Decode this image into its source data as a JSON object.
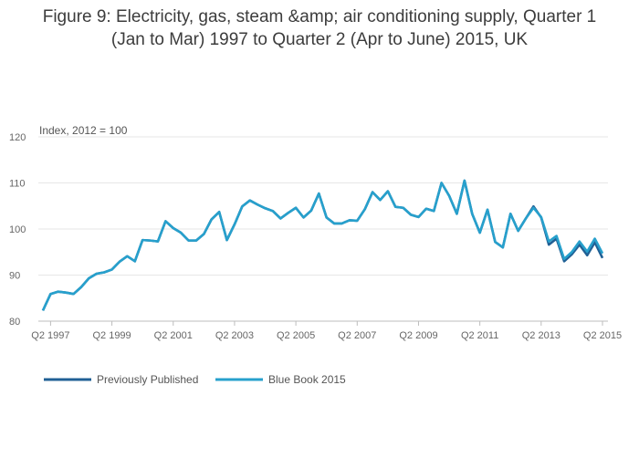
{
  "title_line1": "Figure 9: Electricity, gas, steam &amp; air conditioning supply, Quarter 1",
  "title_line2": "(Jan to Mar) 1997 to Quarter 2 (Apr to June) 2015, UK",
  "chart_data": {
    "type": "line",
    "ylabel": "Index, 2012 = 100",
    "ylim": [
      80,
      120
    ],
    "yticks": [
      80,
      90,
      100,
      110,
      120
    ],
    "grid": true,
    "legend_position": "bottom-left",
    "xtick_labels": [
      "Q2 1997",
      "Q2 1999",
      "Q2 2001",
      "Q2 2003",
      "Q2 2005",
      "Q2 2007",
      "Q2 2009",
      "Q2 2011",
      "Q2 2013",
      "Q2 2015"
    ],
    "xtick_index": [
      1,
      9,
      17,
      25,
      33,
      41,
      49,
      57,
      65,
      73
    ],
    "x": [
      "Q1 1997",
      "Q2 1997",
      "Q3 1997",
      "Q4 1997",
      "Q1 1998",
      "Q2 1998",
      "Q3 1998",
      "Q4 1998",
      "Q1 1999",
      "Q2 1999",
      "Q3 1999",
      "Q4 1999",
      "Q1 2000",
      "Q2 2000",
      "Q3 2000",
      "Q4 2000",
      "Q1 2001",
      "Q2 2001",
      "Q3 2001",
      "Q4 2001",
      "Q1 2002",
      "Q2 2002",
      "Q3 2002",
      "Q4 2002",
      "Q1 2003",
      "Q2 2003",
      "Q3 2003",
      "Q4 2003",
      "Q1 2004",
      "Q2 2004",
      "Q3 2004",
      "Q4 2004",
      "Q1 2005",
      "Q2 2005",
      "Q3 2005",
      "Q4 2005",
      "Q1 2006",
      "Q2 2006",
      "Q3 2006",
      "Q4 2006",
      "Q1 2007",
      "Q2 2007",
      "Q3 2007",
      "Q4 2007",
      "Q1 2008",
      "Q2 2008",
      "Q3 2008",
      "Q4 2008",
      "Q1 2009",
      "Q2 2009",
      "Q3 2009",
      "Q4 2009",
      "Q1 2010",
      "Q2 2010",
      "Q3 2010",
      "Q4 2010",
      "Q1 2011",
      "Q2 2011",
      "Q3 2011",
      "Q4 2011",
      "Q1 2012",
      "Q2 2012",
      "Q3 2012",
      "Q4 2012",
      "Q1 2013",
      "Q2 2013",
      "Q3 2013",
      "Q4 2013",
      "Q1 2014",
      "Q2 2014",
      "Q3 2014",
      "Q4 2014",
      "Q1 2015",
      "Q2 2015"
    ],
    "series": [
      {
        "name": "Previously Published",
        "color": "#206095",
        "values": [
          82.3,
          85.9,
          86.4,
          86.2,
          85.9,
          87.4,
          89.3,
          90.3,
          90.6,
          91.2,
          92.9,
          94.1,
          93.0,
          97.6,
          97.5,
          97.3,
          101.7,
          100.2,
          99.2,
          97.5,
          97.5,
          98.9,
          102.1,
          103.7,
          97.6,
          101.0,
          104.9,
          106.2,
          105.3,
          104.5,
          103.9,
          102.3,
          103.5,
          104.6,
          102.5,
          104.0,
          107.7,
          102.5,
          101.2,
          101.2,
          101.9,
          101.8,
          104.3,
          108.0,
          106.3,
          108.2,
          104.8,
          104.6,
          103.1,
          102.6,
          104.4,
          103.9,
          110.0,
          107.2,
          103.3,
          110.5,
          103.3,
          99.2,
          104.2,
          97.2,
          96.0,
          103.3,
          99.6,
          102.3,
          104.9,
          102.5,
          96.6,
          97.9,
          93.0,
          94.5,
          96.6,
          94.3,
          97.1,
          93.7
        ]
      },
      {
        "name": "Blue Book 2015",
        "color": "#27a0cc",
        "values": [
          82.3,
          85.9,
          86.4,
          86.2,
          85.9,
          87.4,
          89.3,
          90.3,
          90.6,
          91.2,
          92.9,
          94.1,
          93.0,
          97.6,
          97.5,
          97.3,
          101.7,
          100.2,
          99.2,
          97.5,
          97.5,
          98.9,
          102.1,
          103.7,
          97.6,
          101.0,
          104.9,
          106.2,
          105.3,
          104.5,
          103.9,
          102.3,
          103.5,
          104.6,
          102.5,
          104.0,
          107.7,
          102.5,
          101.2,
          101.2,
          101.9,
          101.8,
          104.3,
          108.0,
          106.3,
          108.2,
          104.8,
          104.6,
          103.1,
          102.6,
          104.4,
          103.9,
          110.0,
          107.2,
          103.3,
          110.5,
          103.3,
          99.2,
          104.2,
          97.2,
          96.0,
          103.3,
          99.6,
          102.3,
          104.6,
          102.6,
          97.3,
          98.5,
          93.5,
          95.0,
          97.3,
          95.1,
          97.9,
          94.7
        ]
      }
    ]
  }
}
